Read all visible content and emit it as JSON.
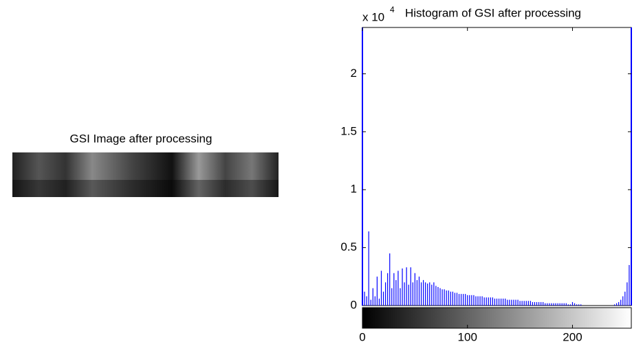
{
  "chart_data": [
    {
      "type": "image",
      "title": "GSI Image after processing"
    },
    {
      "type": "bar",
      "title": "Histogram of GSI after processing",
      "color": "#0000ff",
      "y_multiplier": {
        "base": "x 10",
        "exponent": "4"
      },
      "x": [
        0,
        2,
        4,
        6,
        8,
        10,
        12,
        14,
        16,
        18,
        20,
        22,
        24,
        26,
        28,
        30,
        32,
        34,
        36,
        38,
        40,
        42,
        44,
        46,
        48,
        50,
        52,
        54,
        56,
        58,
        60,
        62,
        64,
        66,
        68,
        70,
        72,
        74,
        76,
        78,
        80,
        82,
        84,
        86,
        88,
        90,
        92,
        94,
        96,
        98,
        100,
        102,
        104,
        106,
        108,
        110,
        112,
        114,
        116,
        118,
        120,
        122,
        124,
        126,
        128,
        130,
        132,
        134,
        136,
        138,
        140,
        142,
        144,
        146,
        148,
        150,
        152,
        154,
        156,
        158,
        160,
        162,
        164,
        166,
        168,
        170,
        172,
        174,
        176,
        178,
        180,
        182,
        184,
        186,
        188,
        190,
        192,
        194,
        196,
        198,
        200,
        202,
        204,
        206,
        208,
        210,
        212,
        214,
        216,
        218,
        220,
        222,
        224,
        226,
        228,
        230,
        232,
        234,
        236,
        238,
        240,
        242,
        244,
        246,
        248,
        250,
        252,
        254
      ],
      "values": [
        0.52,
        0.12,
        0.08,
        0.64,
        0.05,
        0.15,
        0.08,
        0.25,
        0.06,
        0.3,
        0.12,
        0.2,
        0.28,
        0.45,
        0.15,
        0.28,
        0.22,
        0.3,
        0.15,
        0.32,
        0.2,
        0.33,
        0.18,
        0.33,
        0.2,
        0.28,
        0.22,
        0.25,
        0.2,
        0.22,
        0.2,
        0.19,
        0.2,
        0.18,
        0.2,
        0.17,
        0.16,
        0.15,
        0.14,
        0.14,
        0.13,
        0.13,
        0.12,
        0.12,
        0.11,
        0.11,
        0.1,
        0.1,
        0.1,
        0.1,
        0.09,
        0.09,
        0.09,
        0.09,
        0.08,
        0.08,
        0.08,
        0.08,
        0.07,
        0.07,
        0.07,
        0.07,
        0.07,
        0.06,
        0.06,
        0.06,
        0.06,
        0.06,
        0.06,
        0.05,
        0.05,
        0.05,
        0.05,
        0.05,
        0.05,
        0.04,
        0.04,
        0.04,
        0.04,
        0.04,
        0.04,
        0.03,
        0.03,
        0.03,
        0.03,
        0.03,
        0.03,
        0.02,
        0.02,
        0.02,
        0.02,
        0.02,
        0.02,
        0.02,
        0.02,
        0.02,
        0.02,
        0.02,
        0.01,
        0.01,
        0.03,
        0.02,
        0.01,
        0.01,
        0.01,
        0,
        0,
        0,
        0,
        0,
        0,
        0,
        0,
        0,
        0,
        0,
        0,
        0,
        0,
        0,
        0.01,
        0.02,
        0.03,
        0.05,
        0.08,
        0.12,
        0.2,
        0.35
      ],
      "xlim": [
        0,
        256
      ],
      "ylim": [
        0,
        2.4
      ],
      "xticks": [
        0,
        100,
        200
      ],
      "yticks": [
        0,
        0.5,
        1,
        1.5,
        2
      ]
    }
  ]
}
